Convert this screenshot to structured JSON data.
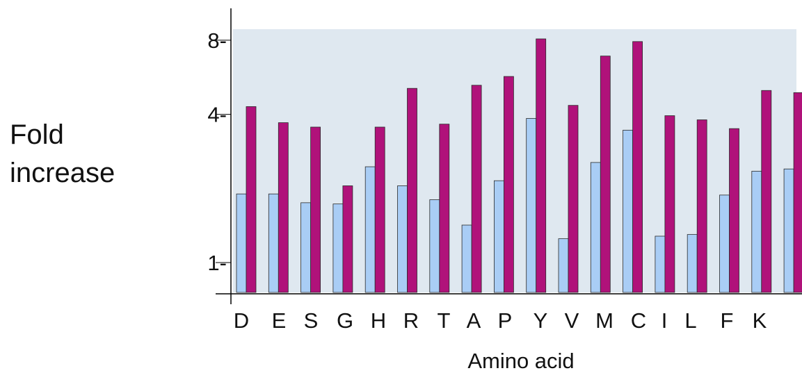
{
  "chart_data": {
    "type": "bar",
    "ylabel_lines": [
      "Fold",
      "increase"
    ],
    "xlabel": "Amino acid",
    "yscale": "log2",
    "ylim": [
      0.8,
      9.4
    ],
    "yticks": [
      {
        "value": 1,
        "label": "1-"
      },
      {
        "value": 4,
        "label": "4-"
      },
      {
        "value": 8,
        "label": "8-"
      }
    ],
    "categories": [
      "D",
      "E",
      "S",
      "G",
      "H",
      "R",
      "T",
      "A",
      "P",
      "Y",
      "V",
      "M",
      "C",
      "I",
      "L",
      "F",
      "K"
    ],
    "series": [
      {
        "color": "#a9cdf5",
        "values": [
          1.9,
          1.9,
          1.75,
          1.73,
          2.45,
          2.05,
          1.8,
          1.42,
          2.15,
          3.85,
          1.25,
          2.55,
          3.45,
          1.28,
          1.3,
          1.88,
          2.35
        ]
      },
      {
        "color": "#b0127a",
        "values": [
          4.3,
          3.7,
          3.55,
          2.05,
          3.55,
          5.1,
          3.65,
          5.25,
          5.7,
          8.1,
          4.35,
          6.9,
          7.9,
          3.95,
          3.8,
          3.5,
          5.0
        ]
      }
    ],
    "extra_bar_pair": {
      "values": [
        2.4,
        4.9
      ]
    },
    "background": "#dfe8f0",
    "grid": false
  }
}
